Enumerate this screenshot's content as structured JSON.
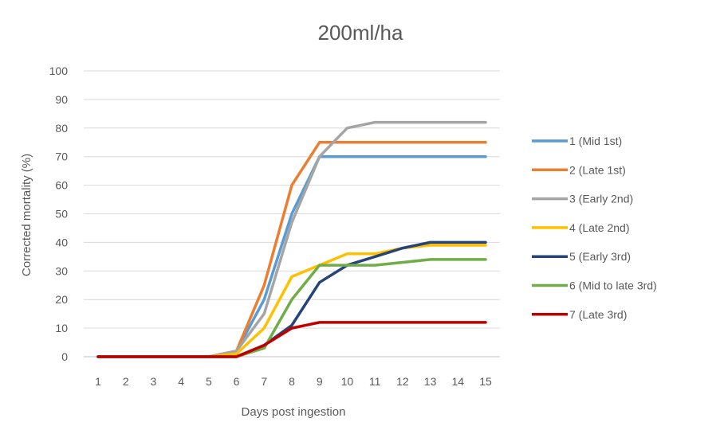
{
  "chart_data": {
    "type": "line",
    "title": "200ml/ha",
    "xlabel": "Days post ingestion",
    "ylabel": "Corrected mortality (%)",
    "x": [
      1,
      2,
      3,
      4,
      5,
      6,
      7,
      8,
      9,
      10,
      11,
      12,
      13,
      14,
      15
    ],
    "ylim": [
      0,
      100
    ],
    "yticks": [
      0,
      10,
      20,
      30,
      40,
      50,
      60,
      70,
      80,
      90,
      100
    ],
    "grid": true,
    "legend_position": "right",
    "series": [
      {
        "name": "1 (Mid 1st)",
        "color": "#5B9BD5",
        "values": [
          0,
          0,
          0,
          0,
          0,
          2,
          20,
          50,
          70,
          70,
          70,
          70,
          70,
          70,
          70
        ]
      },
      {
        "name": "2 (Late 1st)",
        "color": "#ED7D31",
        "values": [
          0,
          0,
          0,
          0,
          0,
          2,
          25,
          60,
          75,
          75,
          75,
          75,
          75,
          75,
          75
        ]
      },
      {
        "name": "3 (Early 2nd)",
        "color": "#A5A5A5",
        "values": [
          0,
          0,
          0,
          0,
          0,
          2,
          15,
          47,
          70,
          80,
          82,
          82,
          82,
          82,
          82
        ]
      },
      {
        "name": "4 (Late 2nd)",
        "color": "#FFC000",
        "values": [
          0,
          0,
          0,
          0,
          0,
          1,
          10,
          28,
          32,
          36,
          36,
          38,
          39,
          39,
          39
        ]
      },
      {
        "name": "5 (Early 3rd)",
        "color": "#264478",
        "values": [
          0,
          0,
          0,
          0,
          0,
          0,
          4,
          11,
          26,
          32,
          35,
          38,
          40,
          40,
          40
        ]
      },
      {
        "name": "6 (Mid to late 3rd)",
        "color": "#70AD47",
        "values": [
          0,
          0,
          0,
          0,
          0,
          0,
          3,
          20,
          32,
          32,
          32,
          33,
          34,
          34,
          34
        ]
      },
      {
        "name": "7 (Late 3rd)",
        "color": "#C00000",
        "values": [
          0,
          0,
          0,
          0,
          0,
          0,
          4,
          10,
          12,
          12,
          12,
          12,
          12,
          12,
          12
        ]
      }
    ]
  }
}
